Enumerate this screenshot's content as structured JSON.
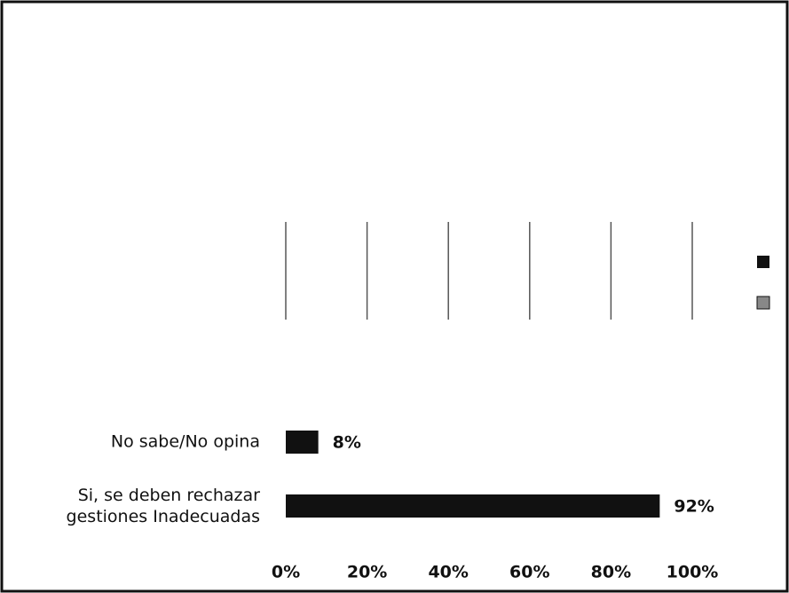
{
  "chart_data": {
    "type": "barh",
    "categories": [
      "No sabe/No opina",
      "Si, se deben rechazar\ngestiones Inadecuadas"
    ],
    "values": [
      8,
      92
    ],
    "value_labels": [
      "8%",
      "92%"
    ],
    "color": "#111111",
    "xlim": [
      0,
      100
    ],
    "xticks": [
      {
        "value": 0,
        "label": "0%"
      },
      {
        "value": 20,
        "label": "20%"
      },
      {
        "value": 40,
        "label": "40%"
      },
      {
        "value": 60,
        "label": "60%"
      },
      {
        "value": 80,
        "label": "80%"
      },
      {
        "value": 100,
        "label": "100%"
      }
    ],
    "grid": true
  }
}
